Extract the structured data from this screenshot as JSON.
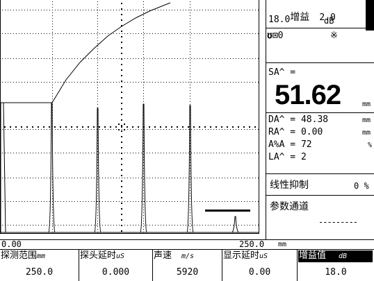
{
  "gain": {
    "label": "增益",
    "value": "2.0",
    "base": "18.0",
    "unit": "dB"
  },
  "status": {
    "icons_text": "0",
    "symbol": "※"
  },
  "sa": {
    "label": "SA^ =",
    "value": "51.62",
    "unit": "mm"
  },
  "da": {
    "text": "DA^ = 48.38",
    "unit": "mm"
  },
  "ra": {
    "text": "RA^ = 0.00",
    "unit": "mm"
  },
  "aa": {
    "text": "A%A = 72",
    "unit": "%"
  },
  "la": {
    "text": "LA^ = 2"
  },
  "reject": {
    "label": "线性抑制",
    "value": "0 %"
  },
  "channel": {
    "label": "参数通道",
    "value": "---------"
  },
  "axis": {
    "min": "0.00",
    "max": "250.0",
    "unit": "mm"
  },
  "params": [
    {
      "label": "探测范围",
      "unit": "mm",
      "value": "250.0"
    },
    {
      "label": "探头延时",
      "unit": "uS",
      "value": "0.000"
    },
    {
      "label": "声速",
      "unit": "m/s",
      "value": "5920"
    },
    {
      "label": "显示延时",
      "unit": "uS",
      "value": "0.00"
    },
    {
      "label": "增益值",
      "unit": "dB",
      "value": "18.0",
      "selected": true
    }
  ]
}
